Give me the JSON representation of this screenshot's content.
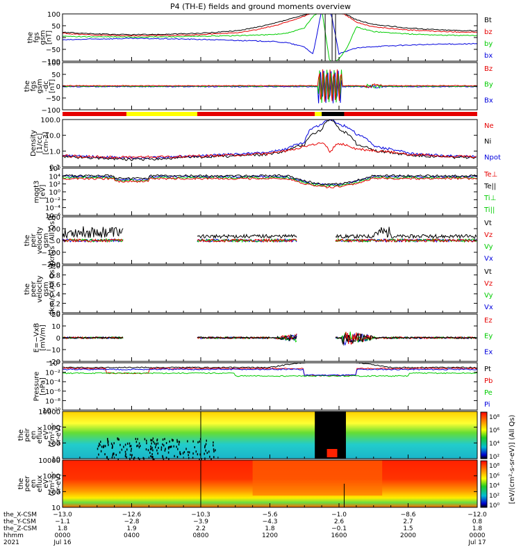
{
  "title": "P4 (TH-E) fields and ground moments overview",
  "colors": {
    "black": "#000000",
    "red": "#e60000",
    "green": "#00cc00",
    "blue": "#0000dd",
    "yellow": "#ffff00"
  },
  "panels": [
    {
      "id": "fgs",
      "ylabel": [
        "the",
        "fgs",
        "gsm",
        "[nT]"
      ],
      "ticks": [
        "100",
        "50",
        "0",
        "−50",
        "−100"
      ],
      "legend": [
        {
          "text": "Bt",
          "color": "black"
        },
        {
          "text": "bz",
          "color": "red"
        },
        {
          "text": "by",
          "color": "green"
        },
        {
          "text": "bx",
          "color": "blue"
        }
      ]
    },
    {
      "id": "fgs_dc",
      "ylabel": [
        "the",
        "fgs",
        "gsm",
        "-dc",
        "[nT]"
      ],
      "ticks": [
        "100",
        "50",
        "0",
        "−50",
        "−100"
      ],
      "legend": [
        {
          "text": "Bz",
          "color": "red"
        },
        {
          "text": "By",
          "color": "green"
        },
        {
          "text": "Bx",
          "color": "blue"
        }
      ]
    },
    {
      "id": "density",
      "ylabel": [
        "Density",
        "[1/cc]",
        "[cm-3]"
      ],
      "ticks": [
        "100.0",
        "10.0",
        "1.0",
        "0.1"
      ],
      "legend": [
        {
          "text": "Ne",
          "color": "red"
        },
        {
          "text": "Ni",
          "color": "black"
        },
        {
          "text": "Npot",
          "color": "blue"
        }
      ]
    },
    {
      "id": "temp",
      "ylabel": [
        "mqgt3",
        "[eV]"
      ],
      "ticks": [
        "10⁶",
        "10⁴",
        "10²",
        "10⁰",
        "10⁻²",
        "10⁻⁴",
        "10⁻⁶"
      ],
      "legend": [
        {
          "text": "Te⊥",
          "color": "red"
        },
        {
          "text": "Te||",
          "color": "black"
        },
        {
          "text": "Ti⊥",
          "color": "green"
        },
        {
          "text": "Ti||",
          "color": "green"
        }
      ]
    },
    {
      "id": "peir_vel",
      "ylabel": [
        "the",
        "peir",
        "velocity",
        "gsm",
        "[km/s (All Qs)]"
      ],
      "ticks": [
        "200",
        "100",
        "0",
        "−100",
        "−200"
      ],
      "legend": [
        {
          "text": "Vt",
          "color": "black"
        },
        {
          "text": "Vz",
          "color": "red"
        },
        {
          "text": "Vy",
          "color": "green"
        },
        {
          "text": "Vx",
          "color": "blue"
        }
      ]
    },
    {
      "id": "peer_vel",
      "ylabel": [
        "the",
        "peer",
        "velocity",
        "gsm",
        "[km/s (All Qs)]"
      ],
      "ticks": [
        "1.0",
        "0.8",
        "0.6",
        "0.4",
        "0.2",
        "0.0"
      ],
      "legend": [
        {
          "text": "Vt",
          "color": "black"
        },
        {
          "text": "Vz",
          "color": "red"
        },
        {
          "text": "Vy",
          "color": "green"
        },
        {
          "text": "Vx",
          "color": "blue"
        }
      ]
    },
    {
      "id": "efield",
      "ylabel": [
        "E=−VxB",
        "[mV/m]"
      ],
      "ticks": [
        "20",
        "10",
        "0",
        "−10",
        "−20"
      ],
      "legend": [
        {
          "text": "Ez",
          "color": "red"
        },
        {
          "text": "Ey",
          "color": "green"
        },
        {
          "text": "Ex",
          "color": "blue"
        }
      ]
    },
    {
      "id": "pressure",
      "ylabel": [
        "Pressure",
        "[nPa]"
      ],
      "ticks": [
        "10⁰",
        "10⁻²",
        "10⁻⁴",
        "10⁻⁶",
        "10⁻⁸",
        "10⁻¹⁰"
      ],
      "legend": [
        {
          "text": "Pt",
          "color": "black"
        },
        {
          "text": "Pb",
          "color": "red"
        },
        {
          "text": "Pe",
          "color": "green"
        },
        {
          "text": "Pi",
          "color": "blue"
        }
      ]
    },
    {
      "id": "peir_eflux",
      "ylabel": [
        "the",
        "peir",
        "en",
        "eflux",
        "eV",
        "(cm²-s-",
        "sr-eV)"
      ],
      "ticks": [
        "10000",
        "1000",
        "100",
        "10"
      ],
      "legend": []
    },
    {
      "id": "peer_eflux",
      "ylabel": [
        "the",
        "peer",
        "en",
        "eflux",
        "eV",
        "(cm²-s-",
        "sr-eV)"
      ],
      "ticks": [
        "10000",
        "1000",
        "100",
        "10"
      ],
      "legend": []
    }
  ],
  "colorbars": [
    {
      "ticks": [
        "10⁸",
        "10⁶",
        "10⁴",
        "10²"
      ]
    },
    {
      "ticks": [
        "10⁸",
        "10⁶",
        "10⁴",
        "10²",
        "10⁰"
      ]
    }
  ],
  "colorbar_label": "[eV/(cm²-s-sr-eV)] (All Qs)",
  "axis_rows": [
    {
      "label": "the_X-CSM",
      "values": [
        "−13.0",
        "−12.6",
        "−10.3",
        "−5.6",
        "−1.0",
        "−8.6",
        "−12.0"
      ]
    },
    {
      "label": "the_Y-CSM",
      "values": [
        "−1.1",
        "−2.8",
        "−3.9",
        "−4.3",
        "2.6",
        "2.7",
        "0.8"
      ]
    },
    {
      "label": "the_Z-CSM",
      "values": [
        "1.8",
        "1.9",
        "2.2",
        "1.8",
        "−0.1",
        "1.5",
        "1.8"
      ]
    },
    {
      "label": "hhmm",
      "values": [
        "0000",
        "0400",
        "0800",
        "1200",
        "1600",
        "2000",
        "0000"
      ]
    },
    {
      "label": "2021",
      "values": [
        "Jul 16",
        "",
        "",
        "",
        "",
        "",
        "Jul 17"
      ]
    }
  ],
  "chart_data": {
    "type": "line",
    "title": "P4 (TH-E) fields and ground moments overview",
    "x_label": "hhmm",
    "x_ticks": [
      "0000",
      "0400",
      "0800",
      "1200",
      "1600",
      "2000",
      "0000"
    ],
    "x_range_hours": [
      0,
      24
    ],
    "mode_bar": [
      {
        "start": 0,
        "end": 3.7,
        "color": "red"
      },
      {
        "start": 3.7,
        "end": 7.8,
        "color": "yellow"
      },
      {
        "start": 7.8,
        "end": 14.6,
        "color": "red"
      },
      {
        "start": 14.6,
        "end": 15.0,
        "color": "yellow"
      },
      {
        "start": 15.0,
        "end": 16.3,
        "color": "black"
      },
      {
        "start": 16.3,
        "end": 24,
        "color": "red"
      }
    ],
    "fgs_series": {
      "t": [
        0,
        2,
        4,
        6,
        8,
        10,
        11,
        12,
        13,
        14,
        14.5,
        15,
        15.5,
        16,
        16.5,
        17,
        18,
        20,
        22,
        24
      ],
      "Bt": [
        22,
        15,
        12,
        14,
        18,
        28,
        40,
        55,
        75,
        95,
        110,
        120,
        120,
        110,
        95,
        75,
        55,
        40,
        32,
        28
      ],
      "bz": [
        18,
        10,
        8,
        9,
        12,
        20,
        30,
        45,
        65,
        90,
        110,
        120,
        120,
        110,
        90,
        65,
        45,
        32,
        25,
        22
      ],
      "by": [
        5,
        3,
        2,
        3,
        5,
        8,
        10,
        12,
        18,
        40,
        90,
        120,
        -120,
        -90,
        -40,
        45,
        25,
        15,
        10,
        8
      ],
      "bx": [
        -10,
        -6,
        -4,
        -5,
        -8,
        -12,
        -14,
        -16,
        -22,
        -40,
        -70,
        120,
        120,
        -70,
        -55,
        -45,
        -38,
        -32,
        -28,
        -26
      ]
    },
    "density_series": {
      "t": [
        0,
        2,
        4,
        6,
        8,
        10,
        12,
        13,
        14,
        15,
        15.5,
        16,
        17,
        18,
        20,
        22,
        24
      ],
      "Ne": [
        0.35,
        0.3,
        0.28,
        0.3,
        0.35,
        0.4,
        0.5,
        0.8,
        1.5,
        2.5,
        0.5,
        2.5,
        1.0,
        0.8,
        0.45,
        0.35,
        0.3
      ],
      "Ni": [
        0.3,
        0.25,
        0.2,
        0.22,
        0.3,
        0.35,
        0.45,
        0.8,
        2.0,
        20,
        100,
        20,
        2.0,
        0.8,
        0.4,
        0.3,
        0.25
      ],
      "Npot": [
        0.35,
        0.3,
        0.25,
        0.28,
        0.35,
        0.45,
        0.6,
        1.0,
        3.0,
        50,
        100,
        50,
        10,
        1.5,
        0.5,
        0.35,
        0.3
      ]
    }
  }
}
